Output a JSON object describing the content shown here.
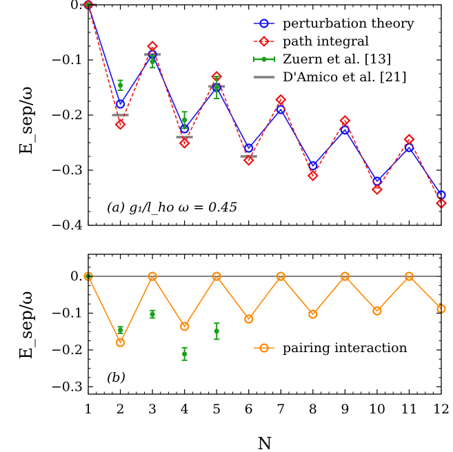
{
  "chart_data": [
    {
      "type": "line",
      "panel": "a",
      "title": "",
      "xlabel": "",
      "ylabel": "E_sep/ω",
      "annotation": "(a) g₁/l_ho ω = 0.45",
      "xlim": [
        1,
        12
      ],
      "ylim": [
        -0.4,
        0.0
      ],
      "x": [
        1,
        2,
        3,
        4,
        5,
        6,
        7,
        8,
        9,
        10,
        11,
        12
      ],
      "yticks": [
        0.0,
        -0.1,
        -0.2,
        -0.3,
        -0.4
      ],
      "ytick_labels": [
        "0.",
        "−0.1",
        "−0.2",
        "−0.3",
        "−0.4"
      ],
      "legend_position": "top-right",
      "series": [
        {
          "name": "perturbation theory",
          "color": "#1010ee",
          "marker": "circle",
          "values": [
            0.0,
            -0.18,
            -0.09,
            -0.225,
            -0.15,
            -0.26,
            -0.19,
            -0.292,
            -0.227,
            -0.32,
            -0.259,
            -0.345
          ]
        },
        {
          "name": "path integral",
          "color": "#ee1010",
          "marker": "diamond",
          "values": [
            0.0,
            -0.217,
            -0.075,
            -0.251,
            -0.13,
            -0.282,
            -0.172,
            -0.31,
            -0.21,
            -0.335,
            -0.244,
            -0.36
          ]
        },
        {
          "name": "Zuern et al. [13]",
          "color": "#1aa01a",
          "marker": "errorbar",
          "x": [
            1,
            2,
            3,
            4,
            5
          ],
          "values": [
            0.0,
            -0.146,
            -0.103,
            -0.209,
            -0.15
          ],
          "errors": [
            0.0,
            0.009,
            0.011,
            0.015,
            0.02
          ]
        },
        {
          "name": "D'Amico et al. [21]",
          "color": "#808080",
          "marker": "hline",
          "x": [
            1,
            2,
            3,
            4,
            5,
            6
          ],
          "values": [
            0.0,
            -0.2,
            -0.09,
            -0.24,
            -0.148,
            -0.275
          ]
        }
      ]
    },
    {
      "type": "line",
      "panel": "b",
      "title": "",
      "xlabel": "N",
      "ylabel": "E_sep/ω",
      "annotation": "(b)",
      "xlim": [
        1,
        12
      ],
      "ylim": [
        -0.32,
        0.06
      ],
      "x": [
        1,
        2,
        3,
        4,
        5,
        6,
        7,
        8,
        9,
        10,
        11,
        12
      ],
      "xticks": [
        "1",
        "2",
        "3",
        "4",
        "5",
        "6",
        "7",
        "8",
        "9",
        "10",
        "11",
        "12"
      ],
      "yticks": [
        0.0,
        -0.1,
        -0.2,
        -0.3
      ],
      "ytick_labels": [
        "0.",
        "−0.1",
        "−0.2",
        "−0.3"
      ],
      "zero_line": true,
      "legend_position": "right",
      "series": [
        {
          "name": "pairing interaction",
          "color": "#ff8800",
          "marker": "circle",
          "values": [
            0.0,
            -0.18,
            0.0,
            -0.136,
            0.0,
            -0.116,
            0.0,
            -0.103,
            0.0,
            -0.094,
            0.0,
            -0.088
          ]
        },
        {
          "name": "",
          "color": "#1aa01a",
          "marker": "errorbar",
          "x": [
            1,
            2,
            3,
            4,
            5
          ],
          "values": [
            0.0,
            -0.146,
            -0.103,
            -0.211,
            -0.149
          ],
          "errors": [
            0.0,
            0.009,
            0.01,
            0.017,
            0.022
          ]
        }
      ]
    }
  ]
}
